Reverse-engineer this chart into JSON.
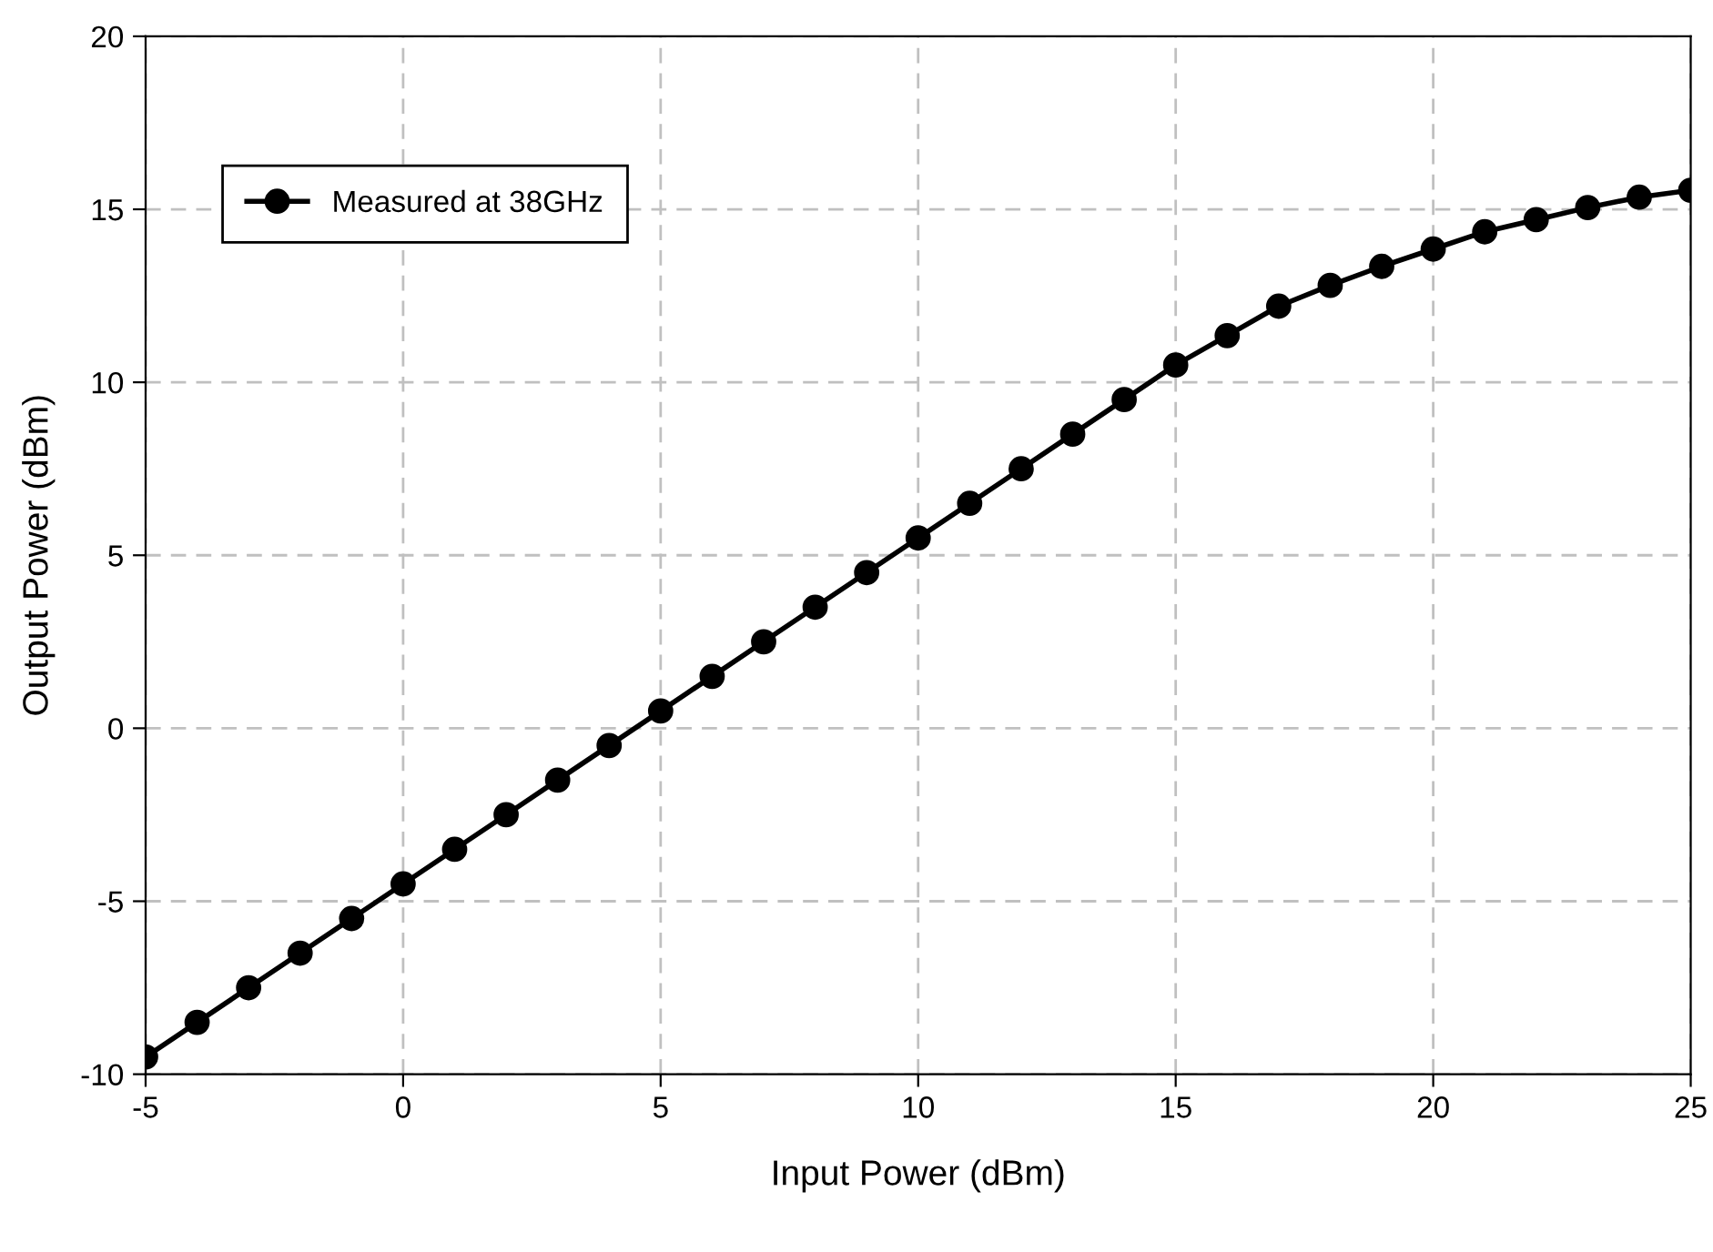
{
  "chart_data": {
    "type": "line",
    "xlabel": "Input Power (dBm)",
    "ylabel": "Output Power (dBm)",
    "x": [
      -5,
      -4,
      -3,
      -2,
      -1,
      0,
      1,
      2,
      3,
      4,
      5,
      6,
      7,
      8,
      9,
      10,
      11,
      12,
      13,
      14,
      15,
      16,
      17,
      18,
      19,
      20,
      21,
      22,
      23,
      24,
      25
    ],
    "series": [
      {
        "name": "Measured at 38GHz",
        "color": "#000000",
        "values": [
          -9.5,
          -8.5,
          -7.5,
          -6.5,
          -5.5,
          -4.5,
          -3.5,
          -2.5,
          -1.5,
          -0.5,
          0.5,
          1.5,
          2.5,
          3.5,
          4.5,
          5.5,
          6.5,
          7.5,
          8.5,
          9.5,
          10.5,
          11.35,
          12.2,
          12.8,
          13.35,
          13.85,
          14.35,
          14.7,
          15.05,
          15.35,
          15.55
        ]
      }
    ],
    "xlim": [
      -5,
      25
    ],
    "xticks": [
      -5,
      0,
      5,
      10,
      15,
      20,
      25
    ],
    "ylim": [
      -10,
      20
    ],
    "yticks": [
      -10,
      -5,
      0,
      5,
      10,
      15,
      20
    ],
    "grid": true,
    "legend": "top left",
    "marker": "circle",
    "line_style": "solid"
  }
}
